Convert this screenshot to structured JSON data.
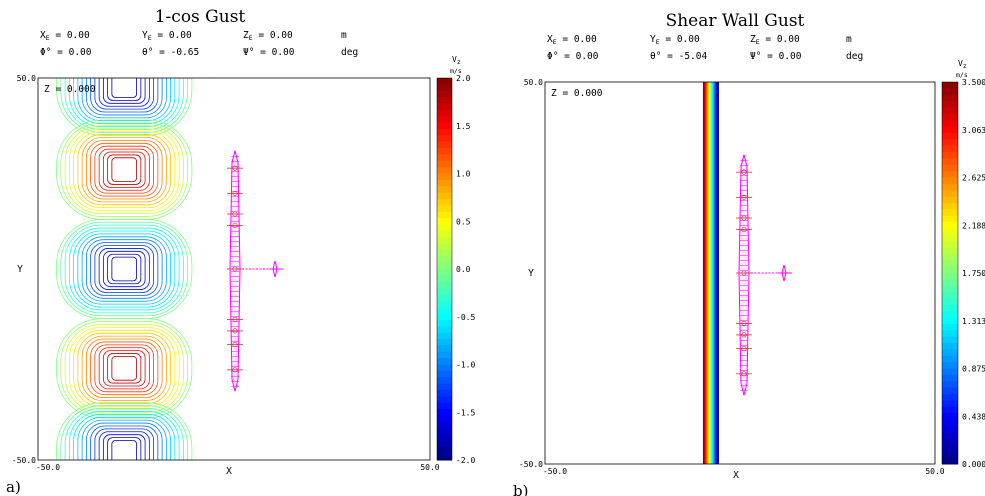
{
  "chart_data": [
    {
      "type": "contour",
      "panel_label": "a)",
      "title": "1-cos Gust",
      "header": {
        "row1": [
          {
            "sym": "X",
            "sub": "E",
            "val": "= 0.00"
          },
          {
            "sym": "Y",
            "sub": "E",
            "val": "= 0.00"
          },
          {
            "sym": "Z",
            "sub": "E",
            "val": "= 0.00"
          },
          {
            "unit": "m"
          }
        ],
        "row2": [
          {
            "sym": "Φ°",
            "sub": "",
            "val": "= 0.00"
          },
          {
            "sym": "θ°",
            "sub": "",
            "val": "= -0.65"
          },
          {
            "sym": "Ψ°",
            "sub": "",
            "val": "= 0.00"
          },
          {
            "unit": "deg"
          }
        ]
      },
      "plane_label": "Z = 0.000",
      "xlabel": "X",
      "ylabel": "Y",
      "x_tick_labels": [
        "-50.0",
        "50.0"
      ],
      "y_tick_labels": [
        "50.0",
        "-50.0"
      ],
      "xlim": [
        -50,
        50
      ],
      "ylim": [
        -50,
        50
      ],
      "colorbar": {
        "label": "V",
        "label_sub": "z",
        "unit": "m/s",
        "ticks": [
          "2.0",
          "1.5",
          "1.0",
          "0.5",
          "0.0",
          "-0.5",
          "-1.0",
          "-1.5",
          "-2.0"
        ],
        "range": [
          -2.0,
          2.0
        ]
      },
      "gust_cells": [
        {
          "y": 48,
          "value": -2.0
        },
        {
          "y": 26,
          "value": 2.0
        },
        {
          "y": 0,
          "value": -2.0
        },
        {
          "y": -26,
          "value": 2.0
        },
        {
          "y": -48,
          "value": -2.0
        }
      ],
      "gust_center_x": -28
    },
    {
      "type": "contour",
      "panel_label": "b)",
      "title": "Shear Wall Gust",
      "header": {
        "row1": [
          {
            "sym": "X",
            "sub": "E",
            "val": "= 0.00"
          },
          {
            "sym": "Y",
            "sub": "E",
            "val": "= 0.00"
          },
          {
            "sym": "Z",
            "sub": "E",
            "val": "= 0.00"
          },
          {
            "unit": "m"
          }
        ],
        "row2": [
          {
            "sym": "Φ°",
            "sub": "",
            "val": "= 0.00"
          },
          {
            "sym": "θ°",
            "sub": "",
            "val": "= -5.04"
          },
          {
            "sym": "Ψ°",
            "sub": "",
            "val": "= 0.00"
          },
          {
            "unit": "deg"
          }
        ]
      },
      "plane_label": "Z = 0.000",
      "xlabel": "X",
      "ylabel": "Y",
      "x_tick_labels": [
        "-50.0",
        "50.0"
      ],
      "y_tick_labels": [
        "50.0",
        "-50.0"
      ],
      "xlim": [
        -50,
        50
      ],
      "ylim": [
        -50,
        50
      ],
      "colorbar": {
        "label": "V",
        "label_sub": "z",
        "unit": "m/s",
        "ticks": [
          "3.500",
          "3.063",
          "2.625",
          "2.188",
          "1.750",
          "1.313",
          "0.875",
          "0.438",
          "0.000"
        ],
        "range": [
          0.0,
          3.5
        ]
      },
      "shear_wall_x": [
        -9.5,
        -5.5
      ]
    }
  ]
}
